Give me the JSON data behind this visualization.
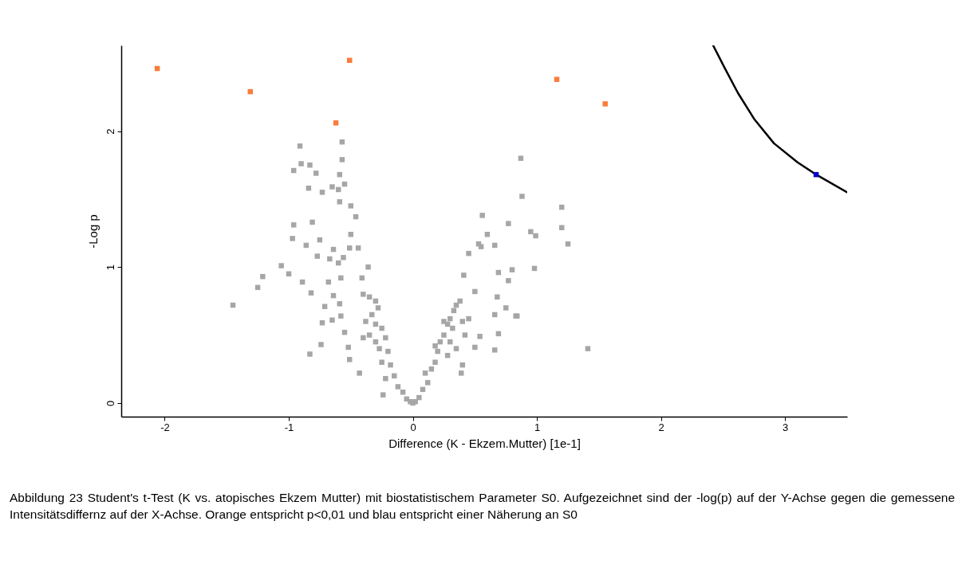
{
  "chart_data": {
    "type": "scatter",
    "xlabel": "Difference (K - Ekzem.Mutter) [1e-1]",
    "ylabel": "-Log p",
    "xlim": [
      -2.35,
      3.5
    ],
    "ylim": [
      -0.1,
      2.63
    ],
    "xticks": [
      -2,
      -1,
      0,
      1,
      2,
      3
    ],
    "yticks": [
      0,
      1,
      2
    ],
    "grid": false,
    "marker": "square",
    "annotations": [
      "Abbildung 23 Student's t-Test (K vs. atopisches Ekzem Mutter) mit biostatistischem Parameter S0. Aufgezeichnet sind der -log(p) auf der Y-Achse gegen die gemessene Intensitätsdiffernz auf der X-Achse. Orange entspricht p<0,01 und blau entspricht einer Näherung an S0"
    ],
    "series": [
      {
        "color": "#a6a6a6",
        "x": [
          -0.91,
          -0.96,
          -0.9,
          -0.83,
          -0.78,
          -0.84,
          -0.73,
          -0.65,
          -0.57,
          -0.57,
          -0.59,
          -0.55,
          -0.6,
          -0.59,
          -0.5,
          -0.46,
          -0.96,
          -0.81,
          -0.97,
          -0.75,
          -0.86,
          -0.64,
          -0.5,
          -0.51,
          -0.44,
          -0.77,
          -0.67,
          -0.56,
          -0.6,
          -0.36,
          -1.06,
          -1.0,
          -1.21,
          -1.25,
          -1.45,
          -0.89,
          -0.68,
          -0.58,
          -0.41,
          -0.82,
          -0.64,
          -0.71,
          -0.59,
          -0.73,
          -0.65,
          -0.58,
          -0.55,
          -0.52,
          -0.74,
          -0.83,
          -0.51,
          -0.43,
          -0.24,
          -0.4,
          -0.35,
          -0.3,
          -0.28,
          -0.33,
          -0.38,
          -0.3,
          -0.25,
          -0.22,
          -0.3,
          -0.35,
          -0.4,
          -0.27,
          -0.2,
          -0.25,
          -0.18,
          -0.15,
          -0.22,
          -0.12,
          -0.08,
          -0.05,
          -0.02,
          0,
          0.56,
          0.6,
          0.53,
          0.55,
          0.45,
          0.66,
          0.77,
          0.41,
          0.69,
          0.8,
          0.77,
          0.5,
          0.68,
          0.75,
          0.84,
          0.66,
          0.69,
          0.66,
          0.54,
          0.5,
          0.4,
          0.39,
          0.87,
          0.88,
          1.2,
          1.2,
          1.25,
          0.95,
          0.99,
          0.98,
          1.41,
          0.83,
          0.02,
          0.05,
          0.08,
          0.12,
          0.1,
          0.15,
          0.18,
          0.2,
          0.22,
          0.18,
          0.25,
          0.28,
          0.3,
          0.33,
          0.25,
          0.35,
          0.38,
          0.32,
          0.4,
          0.45,
          0.42,
          0.3,
          0.28,
          0.35
        ],
        "values": [
          1.89,
          1.71,
          1.76,
          1.75,
          1.69,
          1.58,
          1.55,
          1.59,
          1.92,
          1.79,
          1.68,
          1.61,
          1.57,
          1.48,
          1.45,
          1.37,
          1.31,
          1.33,
          1.21,
          1.2,
          1.16,
          1.13,
          1.24,
          1.14,
          1.14,
          1.08,
          1.06,
          1.07,
          1.03,
          1.0,
          1.01,
          0.95,
          0.93,
          0.85,
          0.72,
          0.89,
          0.89,
          0.92,
          0.92,
          0.81,
          0.79,
          0.71,
          0.73,
          0.59,
          0.61,
          0.64,
          0.52,
          0.41,
          0.43,
          0.36,
          0.32,
          0.22,
          0.06,
          0.8,
          0.78,
          0.75,
          0.7,
          0.65,
          0.6,
          0.58,
          0.55,
          0.48,
          0.45,
          0.5,
          0.48,
          0.4,
          0.38,
          0.3,
          0.28,
          0.2,
          0.18,
          0.12,
          0.08,
          0.03,
          0.01,
          0.0,
          1.38,
          1.24,
          1.17,
          1.15,
          1.1,
          1.16,
          1.32,
          0.94,
          0.96,
          0.98,
          0.9,
          0.82,
          0.78,
          0.7,
          0.64,
          0.65,
          0.51,
          0.39,
          0.49,
          0.41,
          0.28,
          0.22,
          1.8,
          1.52,
          1.44,
          1.29,
          1.17,
          1.26,
          1.23,
          0.99,
          0.4,
          0.64,
          0.01,
          0.04,
          0.1,
          0.15,
          0.22,
          0.25,
          0.3,
          0.38,
          0.45,
          0.42,
          0.5,
          0.58,
          0.62,
          0.68,
          0.6,
          0.72,
          0.75,
          0.55,
          0.6,
          0.62,
          0.5,
          0.45,
          0.35,
          0.4
        ]
      },
      {
        "color": "#fa7c3c",
        "x": [
          -2.06,
          -1.31,
          -0.51,
          -0.62,
          1.16,
          1.55
        ],
        "values": [
          2.46,
          2.29,
          2.52,
          2.06,
          2.38,
          2.2
        ]
      },
      {
        "type": "line",
        "marker": "none",
        "color": "#000000",
        "x": [
          2.42,
          2.51,
          2.62,
          2.75,
          2.91,
          3.1,
          3.25,
          3.5
        ],
        "values": [
          2.63,
          2.47,
          2.28,
          2.09,
          1.91,
          1.77,
          1.68,
          1.55
        ]
      },
      {
        "color": "#0000cc",
        "x": [
          3.25
        ],
        "values": [
          1.68
        ]
      }
    ]
  }
}
